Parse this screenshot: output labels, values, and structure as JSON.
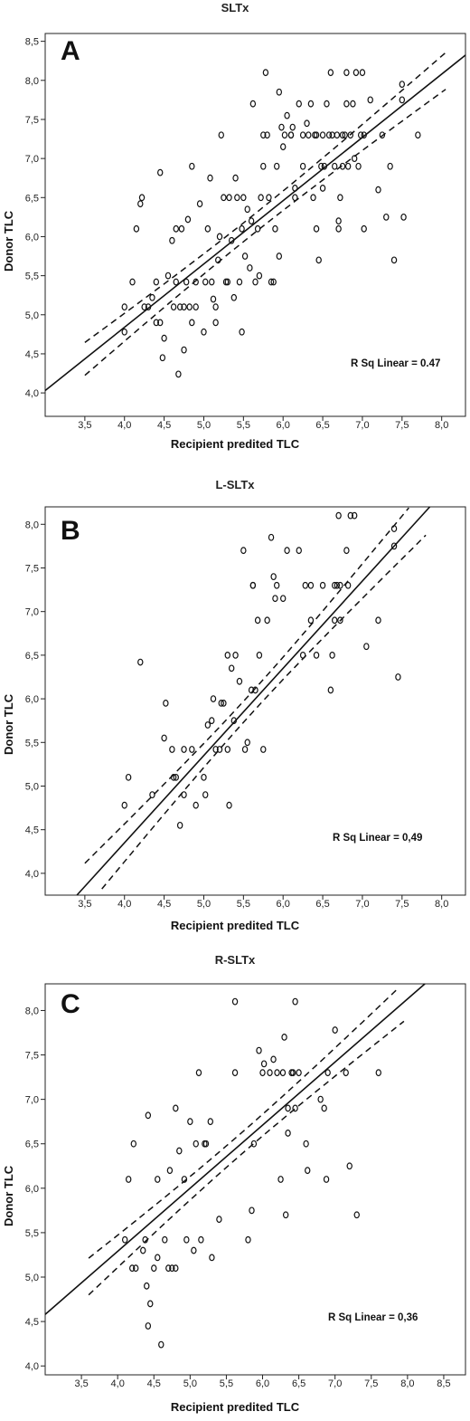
{
  "chart_data": [
    {
      "type": "scatter",
      "title": "SLTx",
      "panel_label": "A",
      "xlabel": "Recipient predited TLC",
      "ylabel": "Donor TLC",
      "xlim": [
        3.0,
        8.3
      ],
      "ylim": [
        3.7,
        8.6
      ],
      "xticks": [
        "3,5",
        "4,0",
        "4,5",
        "5,0",
        "5,5",
        "6,0",
        "6,5",
        "7,0",
        "7,5",
        "8,0"
      ],
      "yticks": [
        "4,0",
        "4,5",
        "5,0",
        "5,5",
        "6,0",
        "6,5",
        "7,0",
        "7,5",
        "8,0",
        "8,5"
      ],
      "annotation": "R Sq Linear = 0.47",
      "fit": {
        "slope": 0.81,
        "intercept": 1.6
      },
      "ci": {
        "se": 0.045,
        "k": 0.33,
        "xbar": 5.6
      },
      "points": [
        [
          4.0,
          4.78
        ],
        [
          4.0,
          5.1
        ],
        [
          4.1,
          5.42
        ],
        [
          4.15,
          6.1
        ],
        [
          4.2,
          6.42
        ],
        [
          4.22,
          6.5
        ],
        [
          4.25,
          5.1
        ],
        [
          4.3,
          5.1
        ],
        [
          4.35,
          5.22
        ],
        [
          4.4,
          5.42
        ],
        [
          4.4,
          4.9
        ],
        [
          4.45,
          4.9
        ],
        [
          4.45,
          6.82
        ],
        [
          4.48,
          4.45
        ],
        [
          4.5,
          4.7
        ],
        [
          4.55,
          5.5
        ],
        [
          4.6,
          5.95
        ],
        [
          4.62,
          5.1
        ],
        [
          4.65,
          5.42
        ],
        [
          4.65,
          6.1
        ],
        [
          4.68,
          4.24
        ],
        [
          4.7,
          5.1
        ],
        [
          4.72,
          6.1
        ],
        [
          4.75,
          4.55
        ],
        [
          4.75,
          5.1
        ],
        [
          4.78,
          5.42
        ],
        [
          4.8,
          6.22
        ],
        [
          4.82,
          5.1
        ],
        [
          4.85,
          4.9
        ],
        [
          4.85,
          6.9
        ],
        [
          4.9,
          5.1
        ],
        [
          4.9,
          5.42
        ],
        [
          4.95,
          6.42
        ],
        [
          5.0,
          4.78
        ],
        [
          5.02,
          5.42
        ],
        [
          5.05,
          6.1
        ],
        [
          5.08,
          6.75
        ],
        [
          5.1,
          5.42
        ],
        [
          5.12,
          5.2
        ],
        [
          5.15,
          4.9
        ],
        [
          5.15,
          5.1
        ],
        [
          5.18,
          5.7
        ],
        [
          5.2,
          6.0
        ],
        [
          5.22,
          7.3
        ],
        [
          5.25,
          6.5
        ],
        [
          5.28,
          5.42
        ],
        [
          5.3,
          5.42
        ],
        [
          5.32,
          6.5
        ],
        [
          5.35,
          5.95
        ],
        [
          5.38,
          5.22
        ],
        [
          5.4,
          6.75
        ],
        [
          5.42,
          6.5
        ],
        [
          5.45,
          5.42
        ],
        [
          5.48,
          6.1
        ],
        [
          5.48,
          4.78
        ],
        [
          5.5,
          6.5
        ],
        [
          5.52,
          5.75
        ],
        [
          5.55,
          6.35
        ],
        [
          5.58,
          5.6
        ],
        [
          5.6,
          6.2
        ],
        [
          5.62,
          7.7
        ],
        [
          5.65,
          5.42
        ],
        [
          5.68,
          6.1
        ],
        [
          5.7,
          5.5
        ],
        [
          5.72,
          6.5
        ],
        [
          5.75,
          6.9
        ],
        [
          5.75,
          7.3
        ],
        [
          5.78,
          8.1
        ],
        [
          5.8,
          7.3
        ],
        [
          5.82,
          6.5
        ],
        [
          5.85,
          5.42
        ],
        [
          5.88,
          5.42
        ],
        [
          5.9,
          6.1
        ],
        [
          5.92,
          6.9
        ],
        [
          5.95,
          7.85
        ],
        [
          5.95,
          5.75
        ],
        [
          5.98,
          7.4
        ],
        [
          6.0,
          7.15
        ],
        [
          6.02,
          7.3
        ],
        [
          6.05,
          7.55
        ],
        [
          6.1,
          7.3
        ],
        [
          6.1,
          7.3
        ],
        [
          6.12,
          7.4
        ],
        [
          6.15,
          6.62
        ],
        [
          6.15,
          6.5
        ],
        [
          6.2,
          7.7
        ],
        [
          6.25,
          7.3
        ],
        [
          6.25,
          6.9
        ],
        [
          6.3,
          7.45
        ],
        [
          6.32,
          7.3
        ],
        [
          6.35,
          7.7
        ],
        [
          6.38,
          6.5
        ],
        [
          6.4,
          7.3
        ],
        [
          6.42,
          6.1
        ],
        [
          6.42,
          7.3
        ],
        [
          6.45,
          5.7
        ],
        [
          6.48,
          6.9
        ],
        [
          6.5,
          7.3
        ],
        [
          6.5,
          6.62
        ],
        [
          6.52,
          6.9
        ],
        [
          6.55,
          7.7
        ],
        [
          6.58,
          7.3
        ],
        [
          6.6,
          8.1
        ],
        [
          6.62,
          7.3
        ],
        [
          6.65,
          6.9
        ],
        [
          6.68,
          7.3
        ],
        [
          6.7,
          6.2
        ],
        [
          6.7,
          6.1
        ],
        [
          6.72,
          6.5
        ],
        [
          6.75,
          6.9
        ],
        [
          6.75,
          7.3
        ],
        [
          6.78,
          7.3
        ],
        [
          6.8,
          8.1
        ],
        [
          6.8,
          7.7
        ],
        [
          6.82,
          6.9
        ],
        [
          6.85,
          7.3
        ],
        [
          6.88,
          7.7
        ],
        [
          6.9,
          7.0
        ],
        [
          6.92,
          8.1
        ],
        [
          6.95,
          6.9
        ],
        [
          6.98,
          7.3
        ],
        [
          7.0,
          8.1
        ],
        [
          7.02,
          7.3
        ],
        [
          7.02,
          6.1
        ],
        [
          7.1,
          7.75
        ],
        [
          7.2,
          6.6
        ],
        [
          7.25,
          7.3
        ],
        [
          7.3,
          6.25
        ],
        [
          7.35,
          6.9
        ],
        [
          7.4,
          5.7
        ],
        [
          7.5,
          7.75
        ],
        [
          7.5,
          7.95
        ],
        [
          7.52,
          6.25
        ],
        [
          7.7,
          7.3
        ]
      ]
    },
    {
      "type": "scatter",
      "title": "L-SLTx",
      "panel_label": "B",
      "xlabel": "Recipient predited TLC",
      "ylabel": "Donor TLC",
      "xlim": [
        3.0,
        8.3
      ],
      "ylim": [
        3.75,
        8.2
      ],
      "xticks": [
        "3,5",
        "4,0",
        "4,5",
        "5,0",
        "5,5",
        "6,0",
        "6,5",
        "7,0",
        "7,5",
        "8,0"
      ],
      "yticks": [
        "4,0",
        "4,5",
        "5,0",
        "5,5",
        "6,0",
        "6,5",
        "7,0",
        "7,5",
        "8,0"
      ],
      "annotation": "R Sq Linear = 0,49",
      "fit": {
        "slope": 1.0,
        "intercept": 0.35
      },
      "ci": {
        "se": 0.06,
        "k": 0.45,
        "xbar": 5.6
      },
      "points": [
        [
          4.0,
          4.78
        ],
        [
          4.05,
          5.1
        ],
        [
          4.2,
          6.42
        ],
        [
          4.35,
          4.9
        ],
        [
          4.5,
          5.55
        ],
        [
          4.52,
          5.95
        ],
        [
          4.6,
          5.42
        ],
        [
          4.62,
          5.1
        ],
        [
          4.65,
          5.1
        ],
        [
          4.7,
          4.55
        ],
        [
          4.75,
          4.9
        ],
        [
          4.75,
          5.42
        ],
        [
          4.85,
          5.42
        ],
        [
          4.9,
          4.78
        ],
        [
          5.0,
          5.1
        ],
        [
          5.02,
          4.9
        ],
        [
          5.05,
          5.7
        ],
        [
          5.1,
          5.75
        ],
        [
          5.12,
          6.0
        ],
        [
          5.15,
          5.42
        ],
        [
          5.2,
          5.42
        ],
        [
          5.22,
          5.95
        ],
        [
          5.25,
          5.95
        ],
        [
          5.3,
          6.5
        ],
        [
          5.3,
          5.42
        ],
        [
          5.32,
          4.78
        ],
        [
          5.35,
          6.35
        ],
        [
          5.38,
          5.75
        ],
        [
          5.4,
          6.5
        ],
        [
          5.45,
          6.2
        ],
        [
          5.5,
          7.7
        ],
        [
          5.52,
          5.42
        ],
        [
          5.55,
          5.5
        ],
        [
          5.6,
          6.1
        ],
        [
          5.62,
          7.3
        ],
        [
          5.62,
          7.3
        ],
        [
          5.65,
          6.1
        ],
        [
          5.68,
          6.9
        ],
        [
          5.7,
          6.5
        ],
        [
          5.75,
          5.42
        ],
        [
          5.8,
          6.9
        ],
        [
          5.85,
          7.85
        ],
        [
          5.88,
          7.4
        ],
        [
          5.9,
          7.15
        ],
        [
          5.92,
          7.3
        ],
        [
          6.0,
          7.15
        ],
        [
          6.05,
          7.7
        ],
        [
          6.2,
          7.7
        ],
        [
          6.25,
          6.5
        ],
        [
          6.28,
          7.3
        ],
        [
          6.35,
          7.3
        ],
        [
          6.35,
          6.9
        ],
        [
          6.42,
          6.5
        ],
        [
          6.5,
          7.3
        ],
        [
          6.6,
          6.1
        ],
        [
          6.62,
          6.5
        ],
        [
          6.65,
          6.9
        ],
        [
          6.65,
          7.3
        ],
        [
          6.68,
          7.3
        ],
        [
          6.7,
          8.1
        ],
        [
          6.72,
          6.9
        ],
        [
          6.72,
          7.3
        ],
        [
          6.8,
          7.7
        ],
        [
          6.82,
          7.3
        ],
        [
          6.85,
          8.1
        ],
        [
          6.9,
          8.1
        ],
        [
          7.05,
          6.6
        ],
        [
          7.2,
          6.9
        ],
        [
          7.4,
          7.95
        ],
        [
          7.4,
          7.75
        ],
        [
          7.45,
          6.25
        ]
      ]
    },
    {
      "type": "scatter",
      "title": "R-SLTx",
      "panel_label": "C",
      "xlabel": "Recipient predited TLC",
      "ylabel": "Donor TLC",
      "xlim": [
        3.0,
        8.8
      ],
      "ylim": [
        3.9,
        8.3
      ],
      "xticks": [
        "3,5",
        "4,0",
        "4,5",
        "5,0",
        "5,5",
        "6,0",
        "6,5",
        "7,0",
        "7,5",
        "8,0",
        "8,5"
      ],
      "yticks": [
        "4,0",
        "4,5",
        "5,0",
        "5,5",
        "6,0",
        "6,5",
        "7,0",
        "7,5",
        "8,0"
      ],
      "annotation": "R Sq Linear = 0,36",
      "fit": {
        "slope": 0.71,
        "intercept": 2.45
      },
      "ci": {
        "se": 0.05,
        "k": 0.32,
        "xbar": 5.7
      },
      "points": [
        [
          4.1,
          5.42
        ],
        [
          4.15,
          6.1
        ],
        [
          4.2,
          5.1
        ],
        [
          4.22,
          6.5
        ],
        [
          4.25,
          5.1
        ],
        [
          4.35,
          5.3
        ],
        [
          4.38,
          5.42
        ],
        [
          4.4,
          4.9
        ],
        [
          4.42,
          6.82
        ],
        [
          4.42,
          4.45
        ],
        [
          4.45,
          4.7
        ],
        [
          4.5,
          5.1
        ],
        [
          4.55,
          5.22
        ],
        [
          4.55,
          6.1
        ],
        [
          4.6,
          4.24
        ],
        [
          4.65,
          5.42
        ],
        [
          4.7,
          5.1
        ],
        [
          4.72,
          6.2
        ],
        [
          4.75,
          5.1
        ],
        [
          4.8,
          6.9
        ],
        [
          4.8,
          5.1
        ],
        [
          4.85,
          6.42
        ],
        [
          4.92,
          6.1
        ],
        [
          4.95,
          5.42
        ],
        [
          5.0,
          6.75
        ],
        [
          5.05,
          5.3
        ],
        [
          5.08,
          6.5
        ],
        [
          5.12,
          7.3
        ],
        [
          5.15,
          5.42
        ],
        [
          5.2,
          6.5
        ],
        [
          5.22,
          6.5
        ],
        [
          5.28,
          6.75
        ],
        [
          5.3,
          5.22
        ],
        [
          5.4,
          5.65
        ],
        [
          5.62,
          7.3
        ],
        [
          5.62,
          8.1
        ],
        [
          5.8,
          5.42
        ],
        [
          5.85,
          5.75
        ],
        [
          5.88,
          6.5
        ],
        [
          5.95,
          7.55
        ],
        [
          6.0,
          7.3
        ],
        [
          6.02,
          7.4
        ],
        [
          6.1,
          7.3
        ],
        [
          6.15,
          7.45
        ],
        [
          6.2,
          7.3
        ],
        [
          6.25,
          6.1
        ],
        [
          6.28,
          7.3
        ],
        [
          6.3,
          7.7
        ],
        [
          6.32,
          5.7
        ],
        [
          6.35,
          6.9
        ],
        [
          6.35,
          6.62
        ],
        [
          6.4,
          7.3
        ],
        [
          6.42,
          7.3
        ],
        [
          6.45,
          8.1
        ],
        [
          6.45,
          6.9
        ],
        [
          6.5,
          7.3
        ],
        [
          6.6,
          6.5
        ],
        [
          6.62,
          6.2
        ],
        [
          6.8,
          7.0
        ],
        [
          6.85,
          6.9
        ],
        [
          6.88,
          6.1
        ],
        [
          6.9,
          7.3
        ],
        [
          7.0,
          7.78
        ],
        [
          7.15,
          7.3
        ],
        [
          7.2,
          6.25
        ],
        [
          7.3,
          5.7
        ],
        [
          7.6,
          7.3
        ]
      ]
    }
  ]
}
